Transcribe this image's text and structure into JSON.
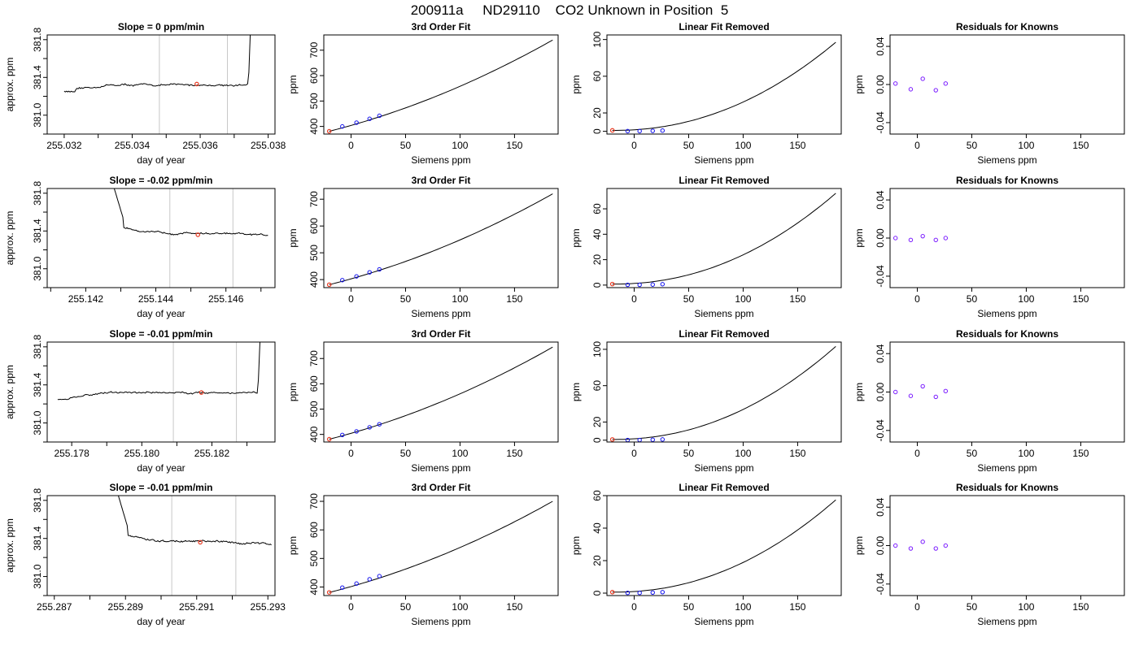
{
  "page_title": "200911a     ND29110    CO2 Unknown in Position  5",
  "colors": {
    "axis": "#000000",
    "trace": "#000000",
    "gridline": "#c8c8c8",
    "highlight_point": "#e83a22",
    "fit_points": "#1010ee",
    "residual_points": "#7a1bff"
  },
  "chart_data": [
    {
      "type": "line",
      "row": 1,
      "panel": "time-series",
      "title": "Slope =  0  ppm/min",
      "xlabel": "day of year",
      "ylabel": "approx. ppm",
      "xlim": [
        255.0315,
        255.0382
      ],
      "ylim": [
        380.8,
        381.85
      ],
      "xticks": [
        "255.032",
        "255.034",
        "255.036",
        "255.038"
      ],
      "xtick_values": [
        255.032,
        255.034,
        255.036,
        255.038
      ],
      "yticks": [
        "381.0",
        "381.4",
        "381.8"
      ],
      "ytick_values": [
        381.0,
        381.4,
        381.8
      ],
      "trace_shape": "spike-end",
      "trace_start": 255.032,
      "trace_end": 255.0375,
      "level": 381.32,
      "vlines": [
        255.0348,
        255.0368
      ],
      "highlight": {
        "x": 255.0359,
        "y": 381.33
      }
    },
    {
      "type": "line",
      "row": 1,
      "panel": "3rd-order-fit",
      "title": "3rd Order Fit",
      "xlabel": "Siemens ppm",
      "ylabel": "ppm",
      "xlim": [
        -25,
        190
      ],
      "ylim": [
        370,
        760
      ],
      "xticks": [
        "0",
        "50",
        "100",
        "150"
      ],
      "xtick_values": [
        0,
        50,
        100,
        150
      ],
      "yticks": [
        "400",
        "500",
        "600",
        "700"
      ],
      "ytick_values": [
        400,
        500,
        600,
        700
      ],
      "curve_end": 740,
      "points": [
        [
          -8,
          400
        ],
        [
          5,
          415
        ],
        [
          17,
          430
        ],
        [
          26,
          442
        ]
      ],
      "highlight": {
        "x": -20,
        "y": 381
      }
    },
    {
      "type": "line",
      "row": 1,
      "panel": "linear-fit-removed",
      "title": "Linear Fit Removed",
      "xlabel": "Siemens ppm",
      "ylabel": "ppm",
      "xlim": [
        -25,
        190
      ],
      "ylim": [
        -3,
        105
      ],
      "xticks": [
        "0",
        "50",
        "100",
        "150"
      ],
      "xtick_values": [
        0,
        50,
        100,
        150
      ],
      "yticks": [
        "0",
        "20",
        "60",
        "100"
      ],
      "ytick_values": [
        0,
        20,
        60,
        100
      ],
      "curve_end": 98,
      "points": [
        [
          -6,
          0.2
        ],
        [
          5,
          0.2
        ],
        [
          17,
          0.5
        ],
        [
          26,
          0.8
        ]
      ],
      "highlight": {
        "x": -20,
        "y": 1
      }
    },
    {
      "type": "scatter",
      "row": 1,
      "panel": "residuals",
      "title": "Residuals for Knowns",
      "xlabel": "Siemens ppm",
      "ylabel": "ppm",
      "xlim": [
        -25,
        190
      ],
      "ylim": [
        -0.052,
        0.052
      ],
      "xticks": [
        "0",
        "50",
        "100",
        "150"
      ],
      "xtick_values": [
        0,
        50,
        100,
        150
      ],
      "yticks": [
        "-0.04",
        "0.00",
        "0.04"
      ],
      "ytick_values": [
        -0.04,
        0.0,
        0.04
      ],
      "points": [
        [
          -20,
          0.001
        ],
        [
          -6,
          -0.005
        ],
        [
          5,
          0.006
        ],
        [
          17,
          -0.006
        ],
        [
          26,
          0.001
        ]
      ]
    },
    {
      "type": "line",
      "row": 2,
      "panel": "time-series",
      "title": "Slope =  -0.02  ppm/min",
      "xlabel": "day of year",
      "ylabel": "approx. ppm",
      "xlim": [
        255.1409,
        255.1474
      ],
      "ylim": [
        380.8,
        381.85
      ],
      "xticks": [
        "255.142",
        "255.144",
        "255.146"
      ],
      "xtick_values": [
        255.142,
        255.144,
        255.146
      ],
      "yticks": [
        "381.0",
        "381.4",
        "381.8"
      ],
      "ytick_values": [
        381.0,
        381.4,
        381.8
      ],
      "trace_shape": "decay-start",
      "trace_start": 255.1425,
      "trace_end": 255.1472,
      "level": 381.38,
      "vlines": [
        255.1444,
        255.1462
      ],
      "highlight": {
        "x": 255.1452,
        "y": 381.36
      }
    },
    {
      "type": "line",
      "row": 2,
      "panel": "3rd-order-fit",
      "title": "3rd Order Fit",
      "xlabel": "Siemens ppm",
      "ylabel": "ppm",
      "xlim": [
        -25,
        190
      ],
      "ylim": [
        370,
        740
      ],
      "xticks": [
        "0",
        "50",
        "100",
        "150"
      ],
      "xtick_values": [
        0,
        50,
        100,
        150
      ],
      "yticks": [
        "400",
        "500",
        "600",
        "700"
      ],
      "ytick_values": [
        400,
        500,
        600,
        700
      ],
      "curve_end": 720,
      "points": [
        [
          -8,
          398
        ],
        [
          5,
          412
        ],
        [
          17,
          427
        ],
        [
          26,
          438
        ]
      ],
      "highlight": {
        "x": -20,
        "y": 381
      }
    },
    {
      "type": "line",
      "row": 2,
      "panel": "linear-fit-removed",
      "title": "Linear Fit Removed",
      "xlabel": "Siemens ppm",
      "ylabel": "ppm",
      "xlim": [
        -25,
        190
      ],
      "ylim": [
        -2,
        76
      ],
      "xticks": [
        "0",
        "50",
        "100",
        "150"
      ],
      "xtick_values": [
        0,
        50,
        100,
        150
      ],
      "yticks": [
        "0",
        "20",
        "40",
        "60"
      ],
      "ytick_values": [
        0,
        20,
        40,
        60
      ],
      "curve_end": 73,
      "points": [
        [
          -6,
          0.2
        ],
        [
          5,
          0.2
        ],
        [
          17,
          0.4
        ],
        [
          26,
          0.7
        ]
      ],
      "highlight": {
        "x": -20,
        "y": 0.8
      }
    },
    {
      "type": "scatter",
      "row": 2,
      "panel": "residuals",
      "title": "Residuals for Knowns",
      "xlabel": "Siemens ppm",
      "ylabel": "ppm",
      "xlim": [
        -25,
        190
      ],
      "ylim": [
        -0.052,
        0.052
      ],
      "xticks": [
        "0",
        "50",
        "100",
        "150"
      ],
      "xtick_values": [
        0,
        50,
        100,
        150
      ],
      "yticks": [
        "-0.04",
        "0.00",
        "0.04"
      ],
      "ytick_values": [
        -0.04,
        0.0,
        0.04
      ],
      "points": [
        [
          -20,
          0.0
        ],
        [
          -6,
          -0.002
        ],
        [
          5,
          0.002
        ],
        [
          17,
          -0.002
        ],
        [
          26,
          0.0
        ]
      ]
    },
    {
      "type": "line",
      "row": 3,
      "panel": "time-series",
      "title": "Slope =  -0.01  ppm/min",
      "xlabel": "day of year",
      "ylabel": "approx. ppm",
      "xlim": [
        255.1773,
        255.1838
      ],
      "ylim": [
        380.8,
        381.85
      ],
      "xticks": [
        "255.178",
        "255.180",
        "255.182"
      ],
      "xtick_values": [
        255.178,
        255.18,
        255.182
      ],
      "yticks": [
        "381.0",
        "381.4",
        "381.8"
      ],
      "ytick_values": [
        381.0,
        381.4,
        381.8
      ],
      "trace_shape": "spike-end",
      "trace_start": 255.1776,
      "trace_end": 255.1834,
      "level": 381.32,
      "vlines": [
        255.1809,
        255.1827
      ],
      "highlight": {
        "x": 255.1817,
        "y": 381.32
      }
    },
    {
      "type": "line",
      "row": 3,
      "panel": "3rd-order-fit",
      "title": "3rd Order Fit",
      "xlabel": "Siemens ppm",
      "ylabel": "ppm",
      "xlim": [
        -25,
        190
      ],
      "ylim": [
        370,
        765
      ],
      "xticks": [
        "0",
        "50",
        "100",
        "150"
      ],
      "xtick_values": [
        0,
        50,
        100,
        150
      ],
      "yticks": [
        "400",
        "500",
        "600",
        "700"
      ],
      "ytick_values": [
        400,
        500,
        600,
        700
      ],
      "curve_end": 745,
      "points": [
        [
          -8,
          398
        ],
        [
          5,
          412
        ],
        [
          17,
          428
        ],
        [
          26,
          440
        ]
      ],
      "highlight": {
        "x": -20,
        "y": 381
      }
    },
    {
      "type": "line",
      "row": 3,
      "panel": "linear-fit-removed",
      "title": "Linear Fit Removed",
      "xlabel": "Siemens ppm",
      "ylabel": "ppm",
      "xlim": [
        -25,
        190
      ],
      "ylim": [
        -2,
        108
      ],
      "xticks": [
        "0",
        "50",
        "100",
        "150"
      ],
      "xtick_values": [
        0,
        50,
        100,
        150
      ],
      "yticks": [
        "0",
        "20",
        "60",
        "100"
      ],
      "ytick_values": [
        0,
        20,
        60,
        100
      ],
      "curve_end": 104,
      "points": [
        [
          -6,
          0.2
        ],
        [
          5,
          0.2
        ],
        [
          17,
          0.5
        ],
        [
          26,
          0.8
        ]
      ],
      "highlight": {
        "x": -20,
        "y": 0.8
      }
    },
    {
      "type": "scatter",
      "row": 3,
      "panel": "residuals",
      "title": "Residuals for Knowns",
      "xlabel": "Siemens ppm",
      "ylabel": "ppm",
      "xlim": [
        -25,
        190
      ],
      "ylim": [
        -0.052,
        0.052
      ],
      "xticks": [
        "0",
        "50",
        "100",
        "150"
      ],
      "xtick_values": [
        0,
        50,
        100,
        150
      ],
      "yticks": [
        "-0.04",
        "0.00",
        "0.04"
      ],
      "ytick_values": [
        -0.04,
        0.0,
        0.04
      ],
      "points": [
        [
          -20,
          0.0
        ],
        [
          -6,
          -0.004
        ],
        [
          5,
          0.006
        ],
        [
          17,
          -0.005
        ],
        [
          26,
          0.001
        ]
      ]
    },
    {
      "type": "line",
      "row": 4,
      "panel": "time-series",
      "title": "Slope =  -0.01  ppm/min",
      "xlabel": "day of year",
      "ylabel": "approx. ppm",
      "xlim": [
        255.2868,
        255.2932
      ],
      "ylim": [
        380.8,
        381.85
      ],
      "xticks": [
        "255.287",
        "255.289",
        "255.291",
        "255.293"
      ],
      "xtick_values": [
        255.287,
        255.289,
        255.291,
        255.293
      ],
      "yticks": [
        "381.0",
        "381.4",
        "381.8"
      ],
      "ytick_values": [
        381.0,
        381.4,
        381.8
      ],
      "trace_shape": "decay-start",
      "trace_start": 255.2885,
      "trace_end": 255.2931,
      "level": 381.37,
      "vlines": [
        255.2903,
        255.2921
      ],
      "highlight": {
        "x": 255.2911,
        "y": 381.36
      }
    },
    {
      "type": "line",
      "row": 4,
      "panel": "3rd-order-fit",
      "title": "3rd Order Fit",
      "xlabel": "Siemens ppm",
      "ylabel": "ppm",
      "xlim": [
        -25,
        190
      ],
      "ylim": [
        370,
        720
      ],
      "xticks": [
        "0",
        "50",
        "100",
        "150"
      ],
      "xtick_values": [
        0,
        50,
        100,
        150
      ],
      "yticks": [
        "400",
        "500",
        "600",
        "700"
      ],
      "ytick_values": [
        400,
        500,
        600,
        700
      ],
      "curve_end": 700,
      "points": [
        [
          -8,
          398
        ],
        [
          5,
          412
        ],
        [
          17,
          427
        ],
        [
          26,
          438
        ]
      ],
      "highlight": {
        "x": -20,
        "y": 381
      }
    },
    {
      "type": "line",
      "row": 4,
      "panel": "linear-fit-removed",
      "title": "Linear Fit Removed",
      "xlabel": "Siemens ppm",
      "ylabel": "ppm",
      "xlim": [
        -25,
        190
      ],
      "ylim": [
        -1.5,
        60
      ],
      "xticks": [
        "0",
        "50",
        "100",
        "150"
      ],
      "xtick_values": [
        0,
        50,
        100,
        150
      ],
      "yticks": [
        "0",
        "20",
        "40",
        "60"
      ],
      "ytick_values": [
        0,
        20,
        40,
        60
      ],
      "curve_end": 58,
      "points": [
        [
          -6,
          0.15
        ],
        [
          5,
          0.15
        ],
        [
          17,
          0.35
        ],
        [
          26,
          0.6
        ]
      ],
      "highlight": {
        "x": -20,
        "y": 0.6
      }
    },
    {
      "type": "scatter",
      "row": 4,
      "panel": "residuals",
      "title": "Residuals for Knowns",
      "xlabel": "Siemens ppm",
      "ylabel": "ppm",
      "xlim": [
        -25,
        190
      ],
      "ylim": [
        -0.052,
        0.052
      ],
      "xticks": [
        "0",
        "50",
        "100",
        "150"
      ],
      "xtick_values": [
        0,
        50,
        100,
        150
      ],
      "yticks": [
        "-0.04",
        "0.00",
        "0.04"
      ],
      "ytick_values": [
        -0.04,
        0.0,
        0.04
      ],
      "points": [
        [
          -20,
          0.0
        ],
        [
          -6,
          -0.003
        ],
        [
          5,
          0.004
        ],
        [
          17,
          -0.003
        ],
        [
          26,
          0.0
        ]
      ]
    }
  ]
}
